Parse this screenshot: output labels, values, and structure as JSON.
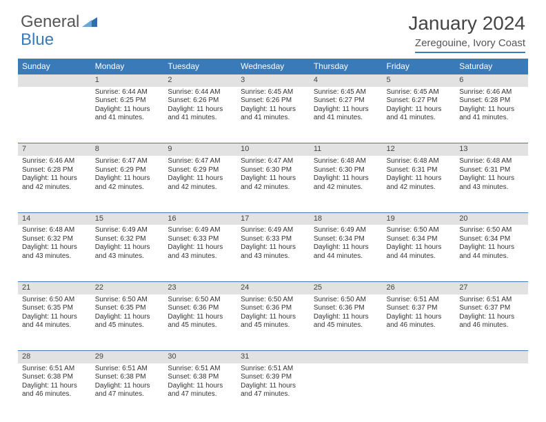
{
  "logo": {
    "general": "General",
    "blue": "Blue"
  },
  "title": "January 2024",
  "location": "Zeregouine, Ivory Coast",
  "day_headers": [
    "Sunday",
    "Monday",
    "Tuesday",
    "Wednesday",
    "Thursday",
    "Friday",
    "Saturday"
  ],
  "colors": {
    "header_bg": "#3a7ab8",
    "header_text": "#ffffff",
    "daynum_bg": "#e2e2e2",
    "border": "#3a7ab8",
    "body_text": "#333333"
  },
  "weeks": [
    [
      null,
      {
        "n": "1",
        "sr": "Sunrise: 6:44 AM",
        "ss": "Sunset: 6:25 PM",
        "dl": "Daylight: 11 hours and 41 minutes."
      },
      {
        "n": "2",
        "sr": "Sunrise: 6:44 AM",
        "ss": "Sunset: 6:26 PM",
        "dl": "Daylight: 11 hours and 41 minutes."
      },
      {
        "n": "3",
        "sr": "Sunrise: 6:45 AM",
        "ss": "Sunset: 6:26 PM",
        "dl": "Daylight: 11 hours and 41 minutes."
      },
      {
        "n": "4",
        "sr": "Sunrise: 6:45 AM",
        "ss": "Sunset: 6:27 PM",
        "dl": "Daylight: 11 hours and 41 minutes."
      },
      {
        "n": "5",
        "sr": "Sunrise: 6:45 AM",
        "ss": "Sunset: 6:27 PM",
        "dl": "Daylight: 11 hours and 41 minutes."
      },
      {
        "n": "6",
        "sr": "Sunrise: 6:46 AM",
        "ss": "Sunset: 6:28 PM",
        "dl": "Daylight: 11 hours and 41 minutes."
      }
    ],
    [
      {
        "n": "7",
        "sr": "Sunrise: 6:46 AM",
        "ss": "Sunset: 6:28 PM",
        "dl": "Daylight: 11 hours and 42 minutes."
      },
      {
        "n": "8",
        "sr": "Sunrise: 6:47 AM",
        "ss": "Sunset: 6:29 PM",
        "dl": "Daylight: 11 hours and 42 minutes."
      },
      {
        "n": "9",
        "sr": "Sunrise: 6:47 AM",
        "ss": "Sunset: 6:29 PM",
        "dl": "Daylight: 11 hours and 42 minutes."
      },
      {
        "n": "10",
        "sr": "Sunrise: 6:47 AM",
        "ss": "Sunset: 6:30 PM",
        "dl": "Daylight: 11 hours and 42 minutes."
      },
      {
        "n": "11",
        "sr": "Sunrise: 6:48 AM",
        "ss": "Sunset: 6:30 PM",
        "dl": "Daylight: 11 hours and 42 minutes."
      },
      {
        "n": "12",
        "sr": "Sunrise: 6:48 AM",
        "ss": "Sunset: 6:31 PM",
        "dl": "Daylight: 11 hours and 42 minutes."
      },
      {
        "n": "13",
        "sr": "Sunrise: 6:48 AM",
        "ss": "Sunset: 6:31 PM",
        "dl": "Daylight: 11 hours and 43 minutes."
      }
    ],
    [
      {
        "n": "14",
        "sr": "Sunrise: 6:48 AM",
        "ss": "Sunset: 6:32 PM",
        "dl": "Daylight: 11 hours and 43 minutes."
      },
      {
        "n": "15",
        "sr": "Sunrise: 6:49 AM",
        "ss": "Sunset: 6:32 PM",
        "dl": "Daylight: 11 hours and 43 minutes."
      },
      {
        "n": "16",
        "sr": "Sunrise: 6:49 AM",
        "ss": "Sunset: 6:33 PM",
        "dl": "Daylight: 11 hours and 43 minutes."
      },
      {
        "n": "17",
        "sr": "Sunrise: 6:49 AM",
        "ss": "Sunset: 6:33 PM",
        "dl": "Daylight: 11 hours and 43 minutes."
      },
      {
        "n": "18",
        "sr": "Sunrise: 6:49 AM",
        "ss": "Sunset: 6:34 PM",
        "dl": "Daylight: 11 hours and 44 minutes."
      },
      {
        "n": "19",
        "sr": "Sunrise: 6:50 AM",
        "ss": "Sunset: 6:34 PM",
        "dl": "Daylight: 11 hours and 44 minutes."
      },
      {
        "n": "20",
        "sr": "Sunrise: 6:50 AM",
        "ss": "Sunset: 6:34 PM",
        "dl": "Daylight: 11 hours and 44 minutes."
      }
    ],
    [
      {
        "n": "21",
        "sr": "Sunrise: 6:50 AM",
        "ss": "Sunset: 6:35 PM",
        "dl": "Daylight: 11 hours and 44 minutes."
      },
      {
        "n": "22",
        "sr": "Sunrise: 6:50 AM",
        "ss": "Sunset: 6:35 PM",
        "dl": "Daylight: 11 hours and 45 minutes."
      },
      {
        "n": "23",
        "sr": "Sunrise: 6:50 AM",
        "ss": "Sunset: 6:36 PM",
        "dl": "Daylight: 11 hours and 45 minutes."
      },
      {
        "n": "24",
        "sr": "Sunrise: 6:50 AM",
        "ss": "Sunset: 6:36 PM",
        "dl": "Daylight: 11 hours and 45 minutes."
      },
      {
        "n": "25",
        "sr": "Sunrise: 6:50 AM",
        "ss": "Sunset: 6:36 PM",
        "dl": "Daylight: 11 hours and 45 minutes."
      },
      {
        "n": "26",
        "sr": "Sunrise: 6:51 AM",
        "ss": "Sunset: 6:37 PM",
        "dl": "Daylight: 11 hours and 46 minutes."
      },
      {
        "n": "27",
        "sr": "Sunrise: 6:51 AM",
        "ss": "Sunset: 6:37 PM",
        "dl": "Daylight: 11 hours and 46 minutes."
      }
    ],
    [
      {
        "n": "28",
        "sr": "Sunrise: 6:51 AM",
        "ss": "Sunset: 6:38 PM",
        "dl": "Daylight: 11 hours and 46 minutes."
      },
      {
        "n": "29",
        "sr": "Sunrise: 6:51 AM",
        "ss": "Sunset: 6:38 PM",
        "dl": "Daylight: 11 hours and 47 minutes."
      },
      {
        "n": "30",
        "sr": "Sunrise: 6:51 AM",
        "ss": "Sunset: 6:38 PM",
        "dl": "Daylight: 11 hours and 47 minutes."
      },
      {
        "n": "31",
        "sr": "Sunrise: 6:51 AM",
        "ss": "Sunset: 6:39 PM",
        "dl": "Daylight: 11 hours and 47 minutes."
      },
      null,
      null,
      null
    ]
  ]
}
